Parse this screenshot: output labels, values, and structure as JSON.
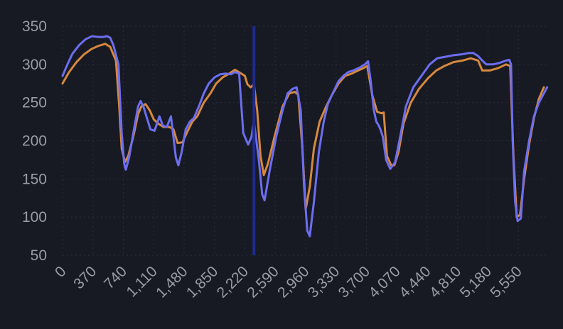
{
  "chart_data": {
    "type": "line",
    "title": "",
    "xlabel": "",
    "ylabel": "",
    "xlim": [
      0,
      5920
    ],
    "ylim": [
      50,
      350
    ],
    "y_ticks": [
      "50",
      "100",
      "150",
      "200",
      "250",
      "300",
      "350"
    ],
    "x_ticks": [
      {
        "value": 0,
        "label": "0"
      },
      {
        "value": 370,
        "label": "370"
      },
      {
        "value": 740,
        "label": "740"
      },
      {
        "value": 1110,
        "label": "1,110"
      },
      {
        "value": 1480,
        "label": "1,480"
      },
      {
        "value": 1850,
        "label": "1,850"
      },
      {
        "value": 2220,
        "label": "2,220"
      },
      {
        "value": 2590,
        "label": "2,590"
      },
      {
        "value": 2960,
        "label": "2,960"
      },
      {
        "value": 3330,
        "label": "3,330"
      },
      {
        "value": 3700,
        "label": "3,700"
      },
      {
        "value": 4070,
        "label": "4,070"
      },
      {
        "value": 4440,
        "label": "4,440"
      },
      {
        "value": 4810,
        "label": "4,810"
      },
      {
        "value": 5180,
        "label": "5,180"
      },
      {
        "value": 5550,
        "label": "5,550"
      }
    ],
    "grid": true,
    "legend": "none",
    "cursor_x": 2330,
    "colors": {
      "cursor": "#1f2a8a",
      "grid": "#2a2d37",
      "tick_text": "#9a9ca3"
    },
    "series": [
      {
        "color": "#d6883e",
        "points": [
          [
            0,
            275
          ],
          [
            80,
            290
          ],
          [
            170,
            303
          ],
          [
            260,
            313
          ],
          [
            350,
            320
          ],
          [
            430,
            324
          ],
          [
            520,
            327
          ],
          [
            580,
            323
          ],
          [
            650,
            305
          ],
          [
            690,
            245
          ],
          [
            720,
            190
          ],
          [
            760,
            172
          ],
          [
            800,
            180
          ],
          [
            860,
            205
          ],
          [
            920,
            235
          ],
          [
            960,
            245
          ],
          [
            1010,
            248
          ],
          [
            1060,
            240
          ],
          [
            1110,
            228
          ],
          [
            1170,
            222
          ],
          [
            1230,
            218
          ],
          [
            1300,
            218
          ],
          [
            1350,
            215
          ],
          [
            1400,
            197
          ],
          [
            1460,
            198
          ],
          [
            1520,
            212
          ],
          [
            1580,
            225
          ],
          [
            1640,
            232
          ],
          [
            1720,
            250
          ],
          [
            1800,
            262
          ],
          [
            1870,
            275
          ],
          [
            1950,
            283
          ],
          [
            2030,
            288
          ],
          [
            2100,
            293
          ],
          [
            2160,
            289
          ],
          [
            2220,
            285
          ],
          [
            2250,
            274
          ],
          [
            2290,
            270
          ],
          [
            2330,
            274
          ],
          [
            2370,
            240
          ],
          [
            2410,
            180
          ],
          [
            2450,
            155
          ],
          [
            2500,
            170
          ],
          [
            2580,
            205
          ],
          [
            2680,
            245
          ],
          [
            2760,
            262
          ],
          [
            2830,
            264
          ],
          [
            2870,
            260
          ],
          [
            2920,
            190
          ],
          [
            2960,
            110
          ],
          [
            3010,
            140
          ],
          [
            3060,
            190
          ],
          [
            3130,
            225
          ],
          [
            3210,
            245
          ],
          [
            3280,
            260
          ],
          [
            3360,
            275
          ],
          [
            3440,
            285
          ],
          [
            3520,
            288
          ],
          [
            3600,
            292
          ],
          [
            3660,
            295
          ],
          [
            3710,
            298
          ],
          [
            3770,
            260
          ],
          [
            3830,
            238
          ],
          [
            3880,
            236
          ],
          [
            3910,
            237
          ],
          [
            3950,
            180
          ],
          [
            4000,
            168
          ],
          [
            4040,
            168
          ],
          [
            4090,
            185
          ],
          [
            4150,
            222
          ],
          [
            4240,
            250
          ],
          [
            4340,
            268
          ],
          [
            4450,
            282
          ],
          [
            4550,
            292
          ],
          [
            4650,
            298
          ],
          [
            4760,
            303
          ],
          [
            4870,
            305
          ],
          [
            4970,
            308
          ],
          [
            5060,
            305
          ],
          [
            5110,
            292
          ],
          [
            5200,
            292
          ],
          [
            5300,
            295
          ],
          [
            5400,
            300
          ],
          [
            5450,
            298
          ],
          [
            5490,
            180
          ],
          [
            5530,
            100
          ],
          [
            5570,
            103
          ],
          [
            5620,
            150
          ],
          [
            5680,
            195
          ],
          [
            5740,
            230
          ],
          [
            5800,
            255
          ],
          [
            5860,
            270
          ]
        ]
      },
      {
        "color": "#6c6ef0",
        "points": [
          [
            0,
            285
          ],
          [
            60,
            300
          ],
          [
            120,
            314
          ],
          [
            200,
            325
          ],
          [
            280,
            333
          ],
          [
            360,
            337
          ],
          [
            430,
            336
          ],
          [
            500,
            336
          ],
          [
            540,
            337
          ],
          [
            580,
            335
          ],
          [
            620,
            325
          ],
          [
            680,
            300
          ],
          [
            720,
            210
          ],
          [
            750,
            170
          ],
          [
            770,
            162
          ],
          [
            810,
            178
          ],
          [
            870,
            215
          ],
          [
            920,
            245
          ],
          [
            950,
            252
          ],
          [
            990,
            243
          ],
          [
            1020,
            232
          ],
          [
            1070,
            215
          ],
          [
            1120,
            213
          ],
          [
            1180,
            232
          ],
          [
            1220,
            220
          ],
          [
            1270,
            218
          ],
          [
            1320,
            232
          ],
          [
            1380,
            178
          ],
          [
            1410,
            168
          ],
          [
            1450,
            185
          ],
          [
            1500,
            215
          ],
          [
            1550,
            225
          ],
          [
            1600,
            230
          ],
          [
            1660,
            245
          ],
          [
            1720,
            262
          ],
          [
            1780,
            275
          ],
          [
            1850,
            283
          ],
          [
            1920,
            287
          ],
          [
            1990,
            288
          ],
          [
            2050,
            287
          ],
          [
            2100,
            290
          ],
          [
            2150,
            288
          ],
          [
            2200,
            210
          ],
          [
            2260,
            195
          ],
          [
            2300,
            205
          ],
          [
            2330,
            225
          ],
          [
            2360,
            200
          ],
          [
            2390,
            175
          ],
          [
            2430,
            130
          ],
          [
            2460,
            122
          ],
          [
            2520,
            160
          ],
          [
            2600,
            205
          ],
          [
            2680,
            240
          ],
          [
            2740,
            262
          ],
          [
            2800,
            268
          ],
          [
            2850,
            270
          ],
          [
            2900,
            240
          ],
          [
            2940,
            140
          ],
          [
            2980,
            82
          ],
          [
            3010,
            75
          ],
          [
            3060,
            120
          ],
          [
            3120,
            185
          ],
          [
            3180,
            225
          ],
          [
            3230,
            248
          ],
          [
            3280,
            260
          ],
          [
            3360,
            278
          ],
          [
            3420,
            285
          ],
          [
            3480,
            290
          ],
          [
            3540,
            292
          ],
          [
            3620,
            296
          ],
          [
            3680,
            300
          ],
          [
            3720,
            304
          ],
          [
            3750,
            280
          ],
          [
            3790,
            240
          ],
          [
            3820,
            225
          ],
          [
            3850,
            220
          ],
          [
            3870,
            215
          ],
          [
            3900,
            205
          ],
          [
            3940,
            175
          ],
          [
            3990,
            163
          ],
          [
            4050,
            172
          ],
          [
            4110,
            205
          ],
          [
            4180,
            245
          ],
          [
            4270,
            270
          ],
          [
            4370,
            285
          ],
          [
            4470,
            300
          ],
          [
            4560,
            308
          ],
          [
            4660,
            310
          ],
          [
            4760,
            312
          ],
          [
            4850,
            313
          ],
          [
            4950,
            315
          ],
          [
            5000,
            315
          ],
          [
            5060,
            311
          ],
          [
            5110,
            305
          ],
          [
            5160,
            300
          ],
          [
            5240,
            300
          ],
          [
            5320,
            302
          ],
          [
            5400,
            305
          ],
          [
            5440,
            306
          ],
          [
            5460,
            300
          ],
          [
            5480,
            200
          ],
          [
            5510,
            120
          ],
          [
            5540,
            95
          ],
          [
            5580,
            98
          ],
          [
            5620,
            160
          ],
          [
            5680,
            200
          ],
          [
            5740,
            232
          ],
          [
            5800,
            250
          ],
          [
            5860,
            262
          ],
          [
            5900,
            270
          ]
        ]
      }
    ]
  }
}
